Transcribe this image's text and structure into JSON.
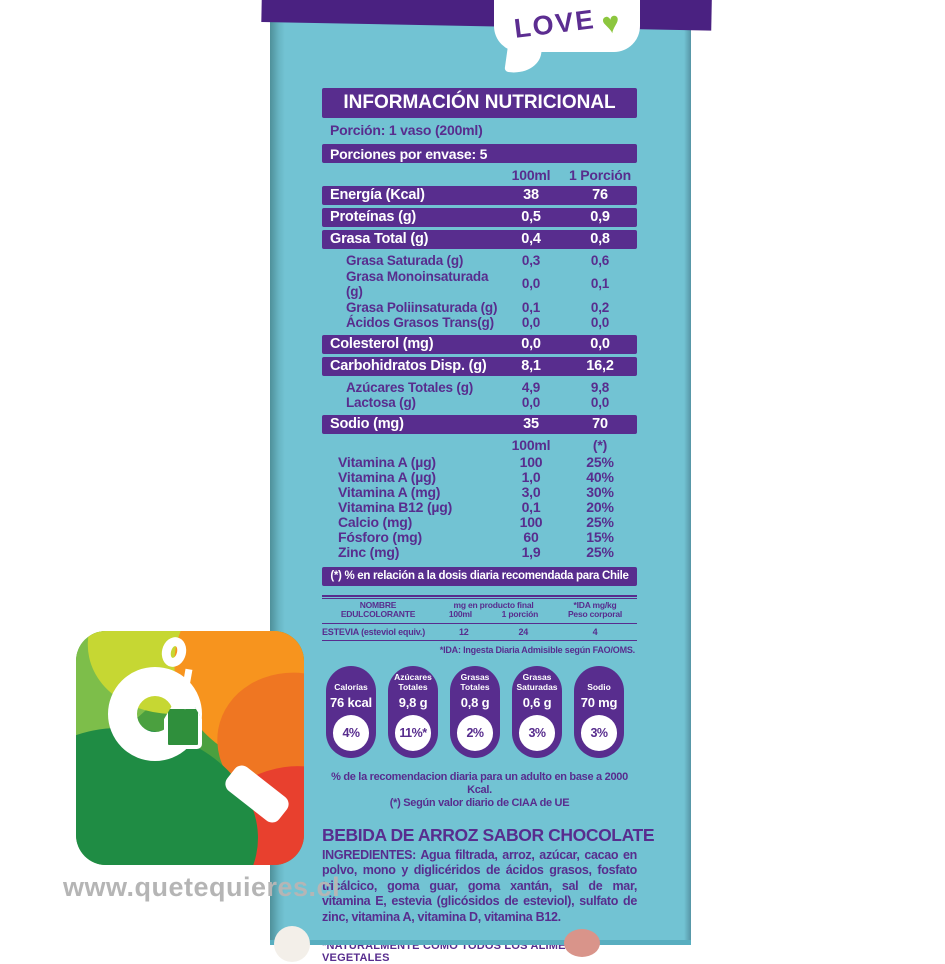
{
  "colors": {
    "purple": "#582d8e",
    "top_band": "#4a2181",
    "carton_blue": "#72c3d3",
    "heart_green": "#8cc63e"
  },
  "bubble": {
    "text": "LOVE",
    "heart": "♥"
  },
  "nutrition": {
    "title": "INFORMACIÓN NUTRICIONAL",
    "portion_label": "Porción:",
    "portion_value": " 1 vaso (200ml)",
    "servings_text": "Porciones por envase: 5",
    "col_100ml": "100ml",
    "col_portion": "1 Porción",
    "rows": [
      {
        "label": "Energía (Kcal)",
        "v1": "38",
        "v2": "76"
      },
      {
        "label": "Proteínas (g)",
        "v1": "0,5",
        "v2": "0,9"
      },
      {
        "label": "Grasa Total (g)",
        "v1": "0,4",
        "v2": "0,8"
      },
      {
        "label": "Grasa Saturada (g)",
        "v1": "0,3",
        "v2": "0,6"
      },
      {
        "label": "Grasa Monoinsaturada (g)",
        "v1": "0,0",
        "v2": "0,1"
      },
      {
        "label": "Grasa Poliinsaturada (g)",
        "v1": "0,1",
        "v2": "0,2"
      },
      {
        "label": "Ácidos Grasos Trans(g)",
        "v1": "0,0",
        "v2": "0,0"
      },
      {
        "label": "Colesterol (mg)",
        "v1": "0,0",
        "v2": "0,0"
      },
      {
        "label": "Carbohidratos Disp. (g)",
        "v1": "8,1",
        "v2": "16,2"
      },
      {
        "label": "Azúcares Totales (g)",
        "v1": "4,9",
        "v2": "9,8"
      },
      {
        "label": "Lactosa (g)",
        "v1": "0,0",
        "v2": "0,0"
      },
      {
        "label": "Sodio (mg)",
        "v1": "35",
        "v2": "70"
      }
    ]
  },
  "vitamins": {
    "col_100ml": "100ml",
    "col_pct": "(*)",
    "rows": [
      {
        "label": "Vitamina A (µg)",
        "v1": "100",
        "v2": "25%"
      },
      {
        "label": "Vitamina A (µg)",
        "v1": "1,0",
        "v2": "40%"
      },
      {
        "label": "Vitamina A (mg)",
        "v1": "3,0",
        "v2": "30%"
      },
      {
        "label": "Vitamina B12 (µg)",
        "v1": "0,1",
        "v2": "20%"
      },
      {
        "label": "Calcio (mg)",
        "v1": "100",
        "v2": "25%"
      },
      {
        "label": "Fósforo (mg)",
        "v1": "60",
        "v2": "15%"
      },
      {
        "label": "Zinc (mg)",
        "v1": "1,9",
        "v2": "25%"
      }
    ],
    "footnote": "(*) % en relación a la dosis diaria recomendada para Chile"
  },
  "sweetener": {
    "col_name_l1": "NOMBRE",
    "col_name_l2": "EDULCOLORANTE",
    "col_mg": "mg en producto final",
    "col_mg_sub1": "100ml",
    "col_mg_sub2": "1 porción",
    "col_ida_l1": "*IDA mg/kg",
    "col_ida_l2": "Peso corporal",
    "row_name": "ESTEVIA (esteviol equiv.)",
    "row_100ml": "12",
    "row_portion": "24",
    "row_ida": "4",
    "footnote": "*IDA: Ingesta Diaria Admisible según FAO/OMS."
  },
  "gda": {
    "badges": [
      {
        "label": "Calorías",
        "value": "76 kcal",
        "pct": "4%"
      },
      {
        "label": "Azúcares Totales",
        "value": "9,8 g",
        "pct": "11%*"
      },
      {
        "label": "Grasas Totales",
        "value": "0,8 g",
        "pct": "2%"
      },
      {
        "label": "Grasas Saturadas",
        "value": "0,6 g",
        "pct": "3%"
      },
      {
        "label": "Sodio",
        "value": "70 mg",
        "pct": "3%"
      }
    ],
    "note1": "% de la recomendacion diaria para un adulto en base a 2000 Kcal.",
    "note2": "(*) Según valor diario de CIAA de UE"
  },
  "product": {
    "name": "BEBIDA DE ARROZ SABOR CHOCOLATE",
    "ingredients_label": "INGREDIENTES:",
    "ingredients": " Agua filtrada, arroz, azúcar, cacao en polvo, mono y diglicéridos de ácidos grasos, fosfato tricálcico, goma guar, goma xantán, sal de mar, vitamina E, estevia (glicósidos de esteviol), sulfato de zinc, vitamina A, vitamina D, vitamina B12.",
    "claim": "*NATURALMENTE COMO TODOS LOS ALIMENTOS VEGETALES"
  },
  "watermark": "www.quetequieres.cl"
}
